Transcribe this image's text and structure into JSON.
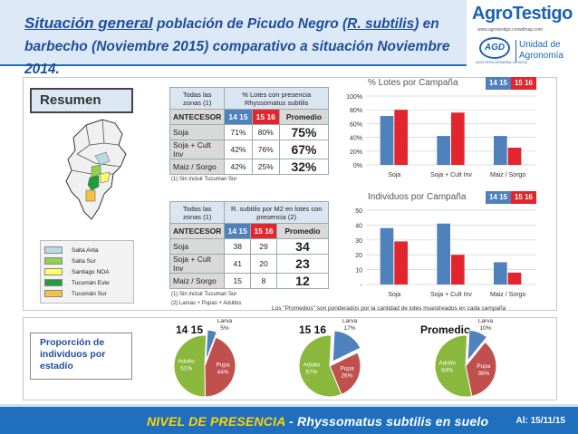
{
  "header": {
    "title_part1": "Situación general",
    "title_part2": " población de Picudo Negro (",
    "title_species": "R. subtilis",
    "title_part3": ") en barbecho (Noviembre 2015) comparativo a situación Noviembre 2014."
  },
  "logo": {
    "word": "AgroTestigo",
    "url": "www.agrotestigo.crowdmap.com",
    "agd": "AGD",
    "agd_sub": "ACEITERA GENERAL DEHEZA",
    "unit": "Unidad de Agronomía"
  },
  "resumen_label": "Resumen",
  "legend": {
    "items": [
      {
        "label": "Salta Anta",
        "color": "#b7dbe6"
      },
      {
        "label": "Salta Sur",
        "color": "#92d050"
      },
      {
        "label": "Santiago NOA",
        "color": "#ffff66"
      },
      {
        "label": "Tucumán Este",
        "color": "#1e9e3a"
      },
      {
        "label": "Tucumán Sur",
        "color": "#f5c242"
      }
    ]
  },
  "table1": {
    "h1": "Todas las zonas",
    "h1_note": "(1)",
    "h2": "% Lotes con presencia Rhyssomatus subtilis",
    "antecesor": "ANTECESOR",
    "c1": "14 15",
    "c2": "15 16",
    "c3": "Promedio",
    "rows": [
      {
        "label": "Soja",
        "v1": "71%",
        "v2": "80%",
        "avg": "75%"
      },
      {
        "label": "Soja + Cult Inv",
        "v1": "42%",
        "v2": "76%",
        "avg": "67%"
      },
      {
        "label": "Maiz / Sorgo",
        "v1": "42%",
        "v2": "25%",
        "avg": "32%"
      }
    ],
    "foot": "(1) Sin incluir Tucuman Sur"
  },
  "table2": {
    "h1": "Todas las zonas",
    "h1_note": "(1)",
    "h2": "R. subtilis por M2 en lotes con presencia (2)",
    "antecesor": "ANTECESOR",
    "c1": "14 15",
    "c2": "15 16",
    "c3": "Promedio",
    "rows": [
      {
        "label": "Soja",
        "v1": "38",
        "v2": "29",
        "avg": "34"
      },
      {
        "label": "Soja + Cult Inv",
        "v1": "41",
        "v2": "20",
        "avg": "23"
      },
      {
        "label": "Maiz / Sorgo",
        "v1": "15",
        "v2": "8",
        "avg": "12"
      }
    ],
    "foot1": "(1) Sin incluir Tucuman Sur",
    "foot2": "(2) Larvas + Pupas + Adultos"
  },
  "note": "Los \"Promedios\" son ponderados por la cantidad de lotes muestreados en cada campaña",
  "prop_label": "Proporción de individuos por estadío",
  "colors": {
    "blue": "#4f81bd",
    "red": "#e3262d",
    "adult": "#8ab83c",
    "pupa": "#c0504d",
    "larva": "#4f81bd"
  },
  "chart_data": [
    {
      "type": "bar",
      "title": "% Lotes por Campaña",
      "legend": [
        "14 15",
        "15 16"
      ],
      "categories": [
        "Soja",
        "Soja + Cult Inv",
        "Maiz / Sorgo"
      ],
      "series": [
        {
          "name": "14 15",
          "values": [
            71,
            42,
            42
          ]
        },
        {
          "name": "15 16",
          "values": [
            80,
            76,
            25
          ]
        }
      ],
      "ylim": [
        0,
        100
      ],
      "yticks": [
        "0%",
        "20%",
        "40%",
        "60%",
        "80%",
        "100%"
      ],
      "legend_position": "top-right"
    },
    {
      "type": "bar",
      "title": "Individuos por Campaña",
      "legend": [
        "14 15",
        "15 16"
      ],
      "categories": [
        "Soja",
        "Soja + Cult Inv",
        "Maiz / Sorgo"
      ],
      "series": [
        {
          "name": "14 15",
          "values": [
            38,
            41,
            15
          ]
        },
        {
          "name": "15 16",
          "values": [
            29,
            20,
            8
          ]
        }
      ],
      "ylim": [
        0,
        50
      ],
      "yticks": [
        "-",
        "10",
        "20",
        "30",
        "40",
        "50"
      ],
      "legend_position": "top-right"
    },
    {
      "type": "pie",
      "title": "14 15",
      "slices": [
        {
          "label": "Larva",
          "pct": "5%",
          "value": 5
        },
        {
          "label": "Pupa",
          "pct": "44%",
          "value": 44
        },
        {
          "label": "Adulto",
          "pct": "51%",
          "value": 51
        }
      ]
    },
    {
      "type": "pie",
      "title": "15 16",
      "slices": [
        {
          "label": "Larva",
          "pct": "17%",
          "value": 17
        },
        {
          "label": "Pupa",
          "pct": "26%",
          "value": 26
        },
        {
          "label": "Adulto",
          "pct": "57%",
          "value": 57
        }
      ]
    },
    {
      "type": "pie",
      "title": "Promedio",
      "slices": [
        {
          "label": "Larva",
          "pct": "10%",
          "value": 10
        },
        {
          "label": "Pupa",
          "pct": "36%",
          "value": 36
        },
        {
          "label": "Adulto",
          "pct": "54%",
          "value": 54
        }
      ]
    }
  ],
  "footer": {
    "title_hl": "NIVEL DE PRESENCIA",
    "title_rest": " - Rhyssomatus subtilis en suelo",
    "date": "Al: 15/11/15"
  }
}
